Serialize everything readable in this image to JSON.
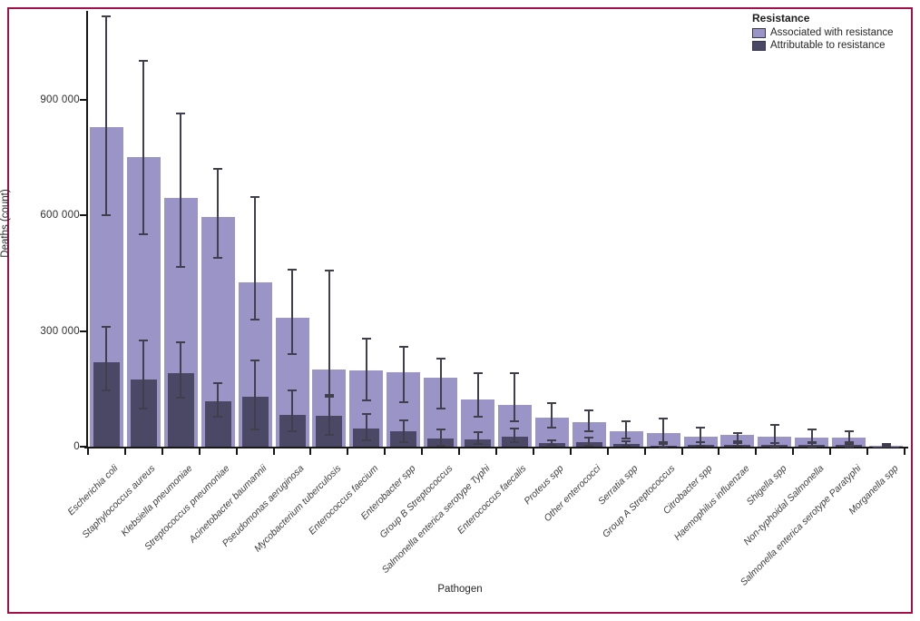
{
  "figure": {
    "frame_color": "#a3114a",
    "y_axis": {
      "label": "Deaths (count)",
      "ticks": [
        {
          "value": 0,
          "label": "0"
        },
        {
          "value": 300000,
          "label": "300 000"
        },
        {
          "value": 600000,
          "label": "600 000"
        },
        {
          "value": 900000,
          "label": "900 000"
        }
      ],
      "max": 1130000
    },
    "x_axis": {
      "label": "Pathogen"
    },
    "legend": {
      "title": "Resistance",
      "items": [
        {
          "label": "Associated with resistance",
          "color": "#9b95c7"
        },
        {
          "label": "Attributable to resistance",
          "color": "#4b4866"
        }
      ]
    },
    "colors": {
      "bar_associated": "#9b95c7",
      "bar_attributable": "#4b4866",
      "error_bar": "#413f4e",
      "axis": "#161616"
    }
  },
  "chart_data": {
    "type": "bar",
    "title": "",
    "xlabel": "Pathogen",
    "ylabel": "Deaths (count)",
    "ylim": [
      0,
      1130000
    ],
    "grid": false,
    "legend_position": "top-right",
    "categories": [
      "Escherichia coli",
      "Staphylococcus aureus",
      "Klebsiella pneumoniae",
      "Streptococcus pneumoniae",
      "Acinetobacter baumannii",
      "Pseudomonas aeruginosa",
      "Mycobacterium tuberculosis",
      "Enterococcus faecium",
      "Enterobacter spp",
      "Group B Streptococcus",
      "Salmonella enterica serotype Typhi",
      "Enterococcus faecalis",
      "Proteus spp",
      "Other enterococci",
      "Serratia spp",
      "Group A Streptococcus",
      "Citrobacter spp",
      "Haemophilus influenzae",
      "Shigella spp",
      "Non-typhoidal Salmonella",
      "Salmonella enterica serotype Paratyphi",
      "Morganella spp"
    ],
    "series": [
      {
        "name": "Associated with resistance",
        "values": [
          829000,
          750000,
          645000,
          595000,
          425000,
          335000,
          200000,
          197000,
          193000,
          180000,
          122000,
          108000,
          76000,
          64000,
          40000,
          35000,
          27000,
          30000,
          26000,
          24000,
          23000,
          3000
        ],
        "ci_low": [
          601000,
          550000,
          465000,
          490000,
          330000,
          240000,
          130000,
          120000,
          116000,
          100000,
          78000,
          66000,
          49000,
          40000,
          21000,
          12000,
          12000,
          15000,
          10000,
          10000,
          12000,
          1000
        ],
        "ci_high": [
          1115000,
          1000000,
          865000,
          720000,
          648000,
          460000,
          457000,
          280000,
          260000,
          229000,
          191000,
          190000,
          113000,
          94000,
          66000,
          73000,
          50000,
          36000,
          57000,
          45000,
          40000,
          6000
        ]
      },
      {
        "name": "Attributable to resistance",
        "values": [
          219000,
          175000,
          190000,
          118000,
          130000,
          82000,
          80000,
          47000,
          40000,
          22000,
          19000,
          26000,
          10000,
          11000,
          7000,
          3000,
          5000,
          5000,
          5000,
          4000,
          4000,
          1000
        ],
        "ci_low": [
          146000,
          100000,
          127000,
          78000,
          45000,
          40000,
          30000,
          16000,
          12000,
          3000,
          8000,
          12000,
          4000,
          3000,
          2000,
          1000,
          2000,
          2000,
          1000,
          1000,
          1000,
          0
        ],
        "ci_high": [
          311000,
          275000,
          270000,
          165000,
          224000,
          145000,
          134000,
          85000,
          68000,
          45000,
          38000,
          47000,
          16000,
          24000,
          14000,
          8000,
          12000,
          9000,
          10000,
          12000,
          8000,
          3000
        ]
      }
    ]
  }
}
